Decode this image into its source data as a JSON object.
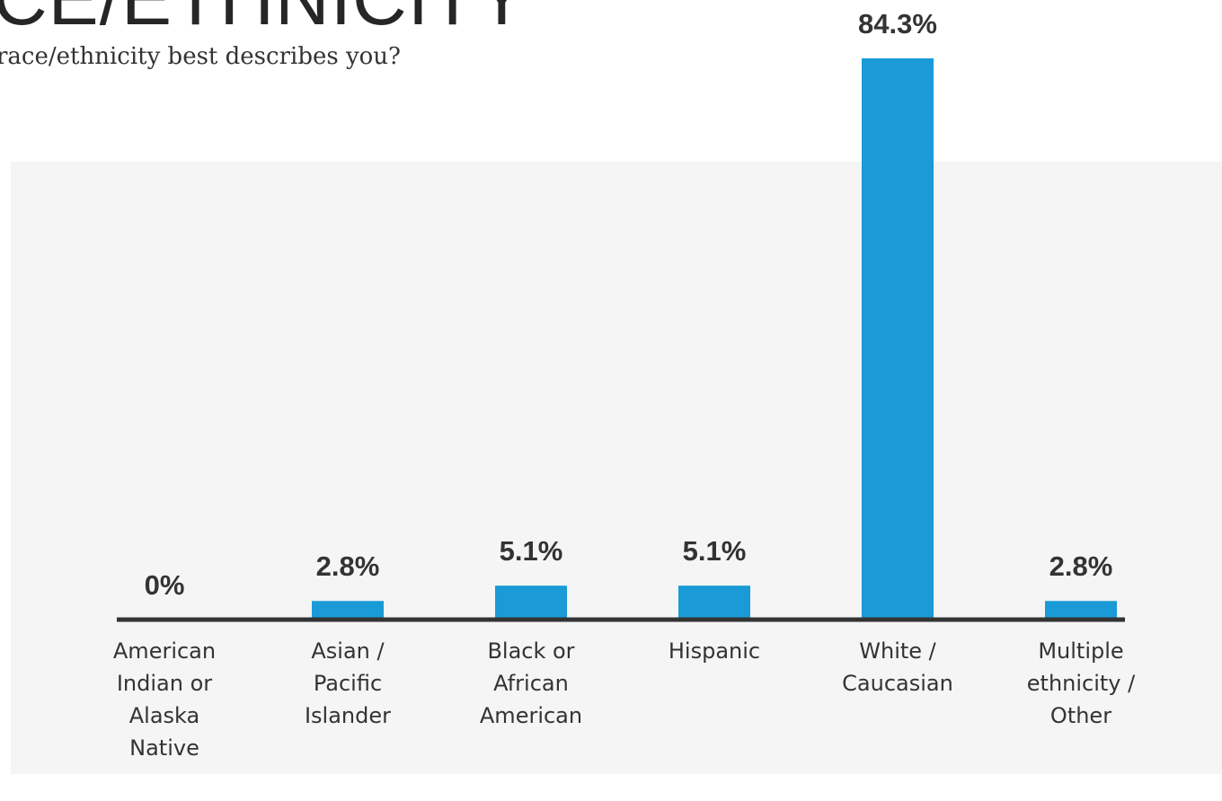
{
  "header": {
    "title": "CE/ETHNICITY",
    "subtitle": "race/ethnicity best describes you?"
  },
  "colors": {
    "bar": "#1a9ad6",
    "axis": "#333333",
    "panel": "#f4f5f4",
    "text": "#333333"
  },
  "chart_data": {
    "type": "bar",
    "categories": [
      [
        "American",
        "Indian or",
        "Alaska",
        "Native"
      ],
      [
        "Asian /",
        "Pacific",
        "Islander"
      ],
      [
        "Black or",
        "African",
        "American"
      ],
      [
        "Hispanic"
      ],
      [
        "White /",
        "Caucasian"
      ],
      [
        "Multiple",
        "ethnicity /",
        "Other"
      ]
    ],
    "values": [
      0,
      2.8,
      5.1,
      5.1,
      84.3,
      2.8
    ],
    "value_labels": [
      "0%",
      "2.8%",
      "5.1%",
      "5.1%",
      "84.3%",
      "2.8%"
    ],
    "unit": "%",
    "grid": false,
    "legend": "none",
    "ylim": [
      0,
      84.3
    ]
  }
}
